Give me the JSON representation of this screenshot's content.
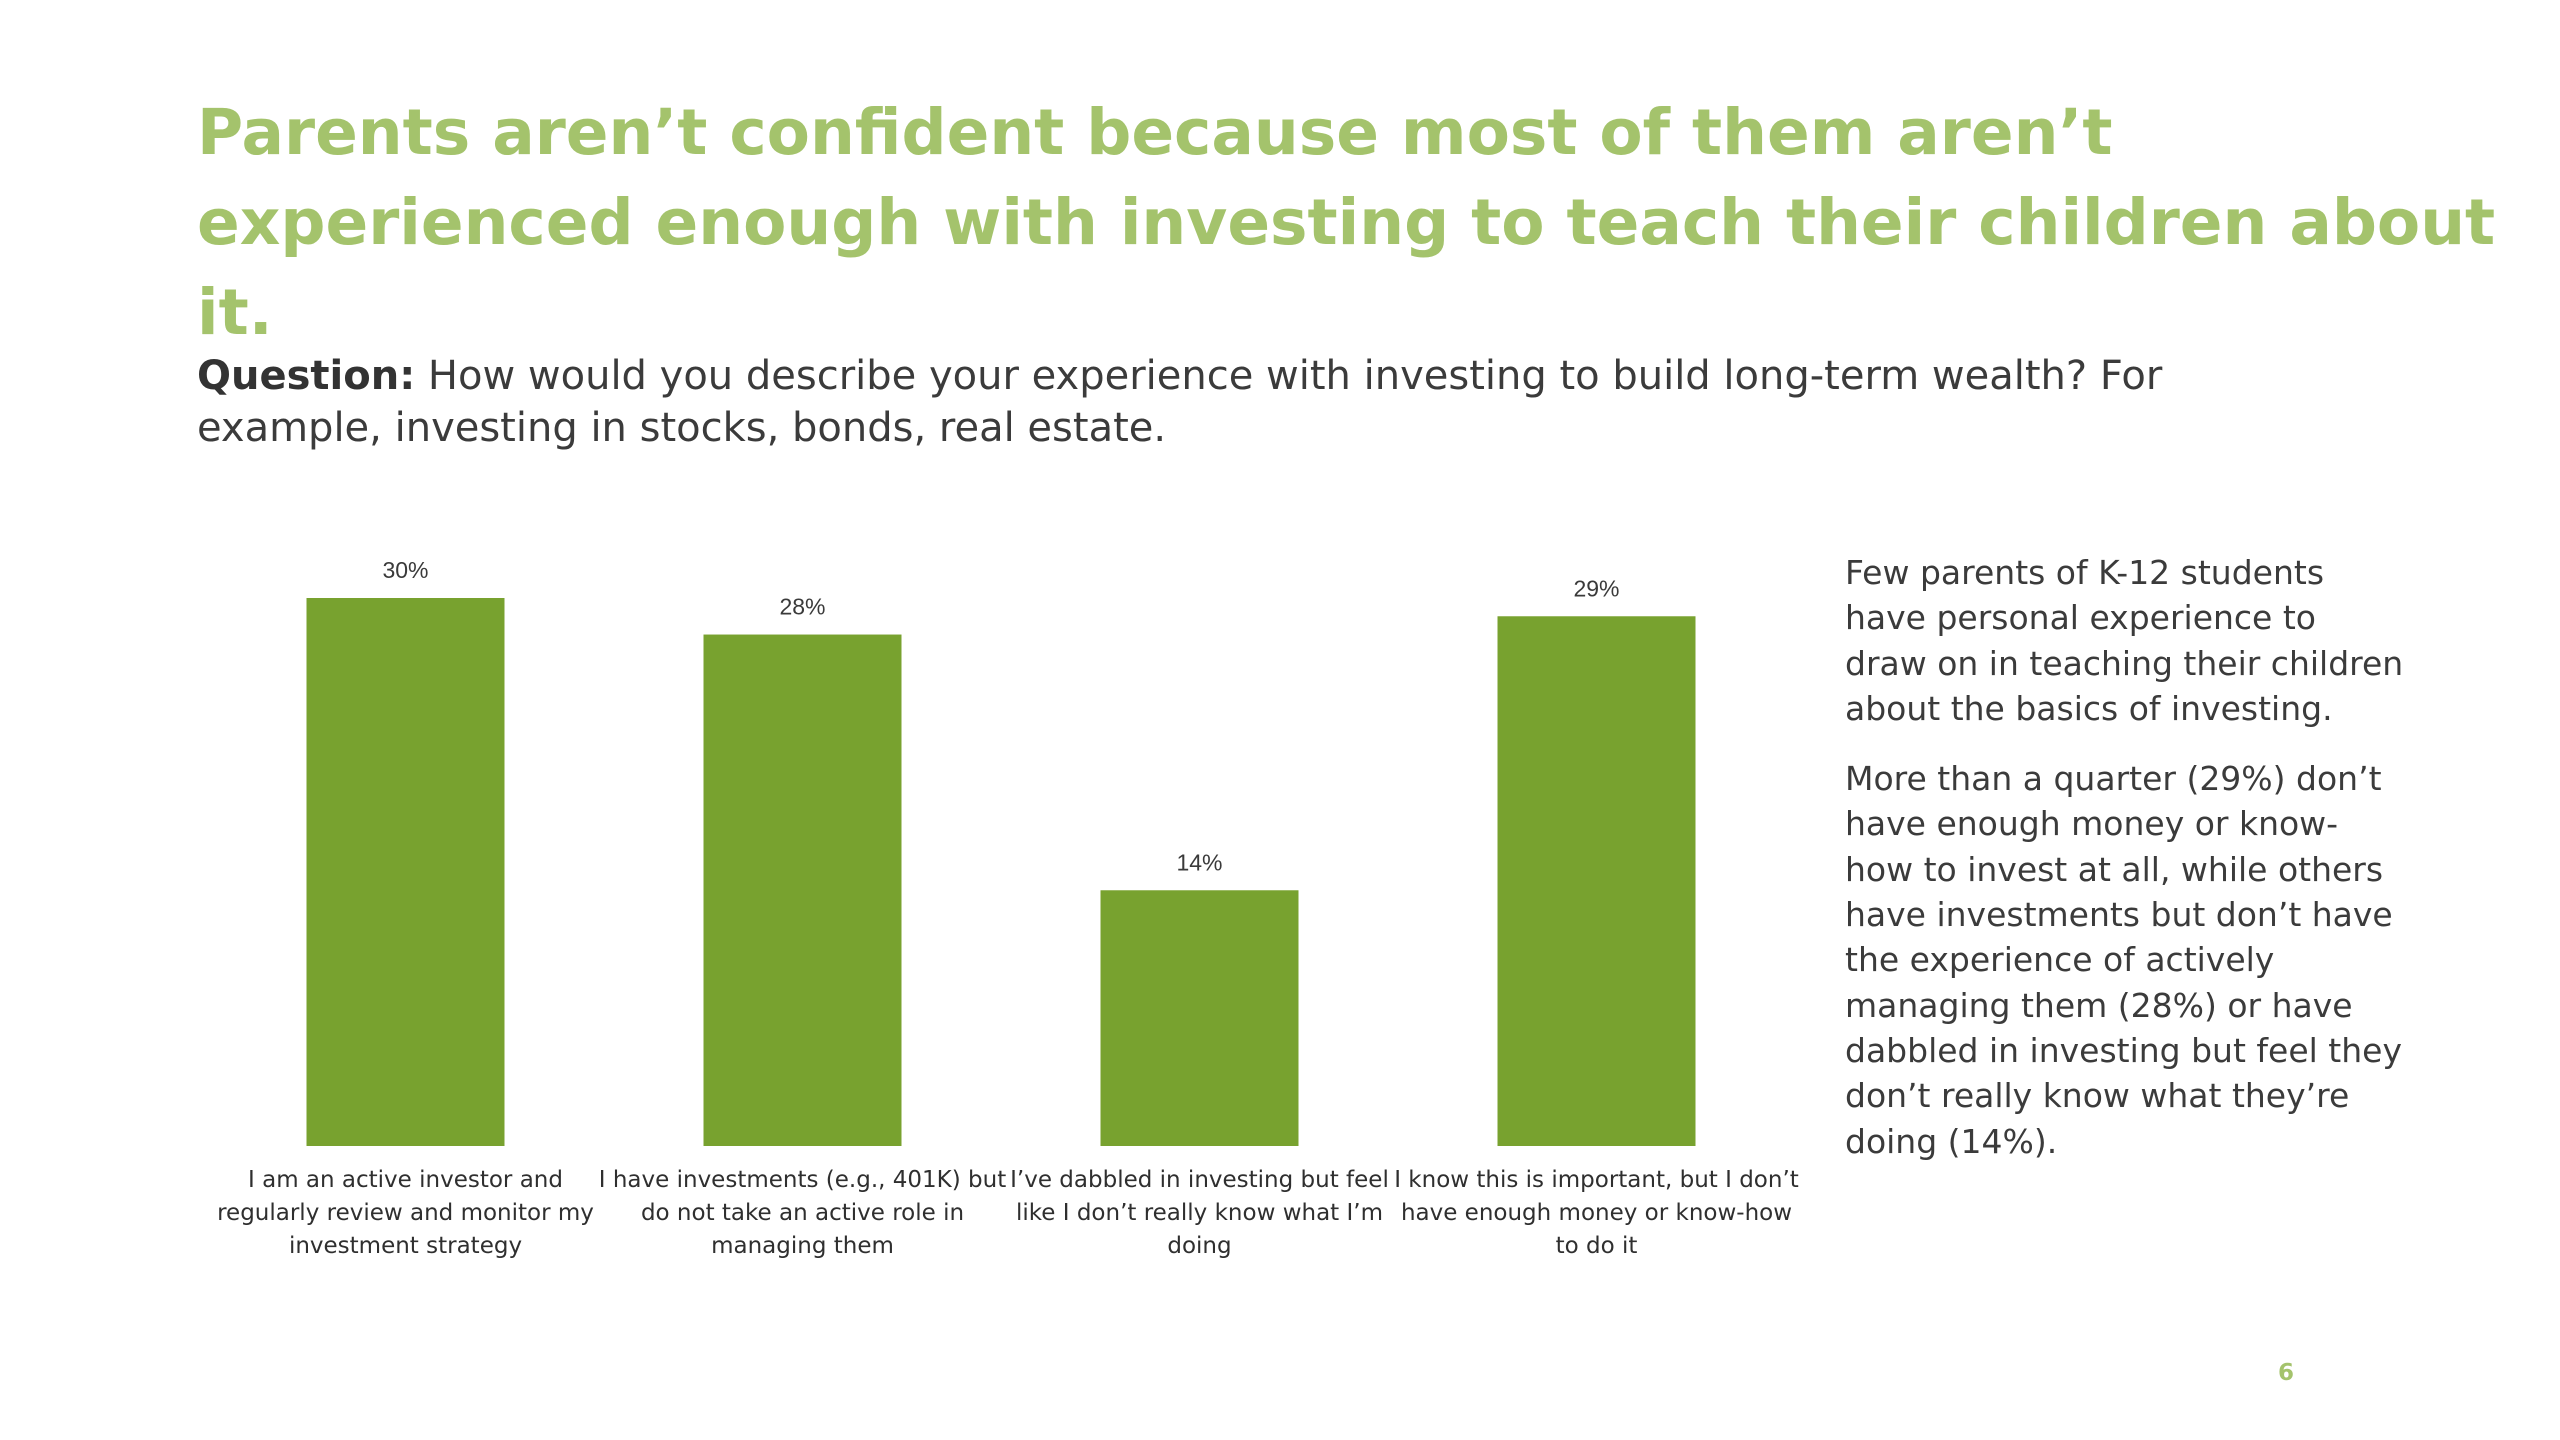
{
  "slide": {
    "title": "Parents aren’t confident because most of them aren’t experienced enough with investing to teach their children about it.",
    "question_label": "Question:",
    "question_text": "How would you describe your experience with investing to build long-term wealth? For example, investing in stocks, bonds, real estate.",
    "side_paragraphs": [
      "Few parents of K-12 students have personal experience to draw on in teaching their children about the basics of investing.",
      "More than a quarter (29%) don’t have enough money or know-how  to invest at all, while others have investments but don’t have the experience of actively managing them (28%) or have dabbled in investing but feel they don’t really know what they’re doing (14%)."
    ],
    "page_number": "6"
  },
  "chart_data": {
    "type": "bar",
    "categories": [
      "I am an active investor and regularly review and monitor my investment strategy",
      "I have investments (e.g., 401K) but do not take an active role in managing them",
      "I’ve dabbled in investing but feel like I don’t really know what I’m doing",
      "I know this is important, but I don’t have enough money or know-how to do it"
    ],
    "values": [
      30,
      28,
      14,
      29
    ],
    "data_labels": [
      "30%",
      "28%",
      "14%",
      "29%"
    ],
    "value_unit": "%",
    "ylim": [
      0,
      30
    ],
    "grid": false,
    "legend": "none",
    "bar_color": "#78a22f"
  }
}
